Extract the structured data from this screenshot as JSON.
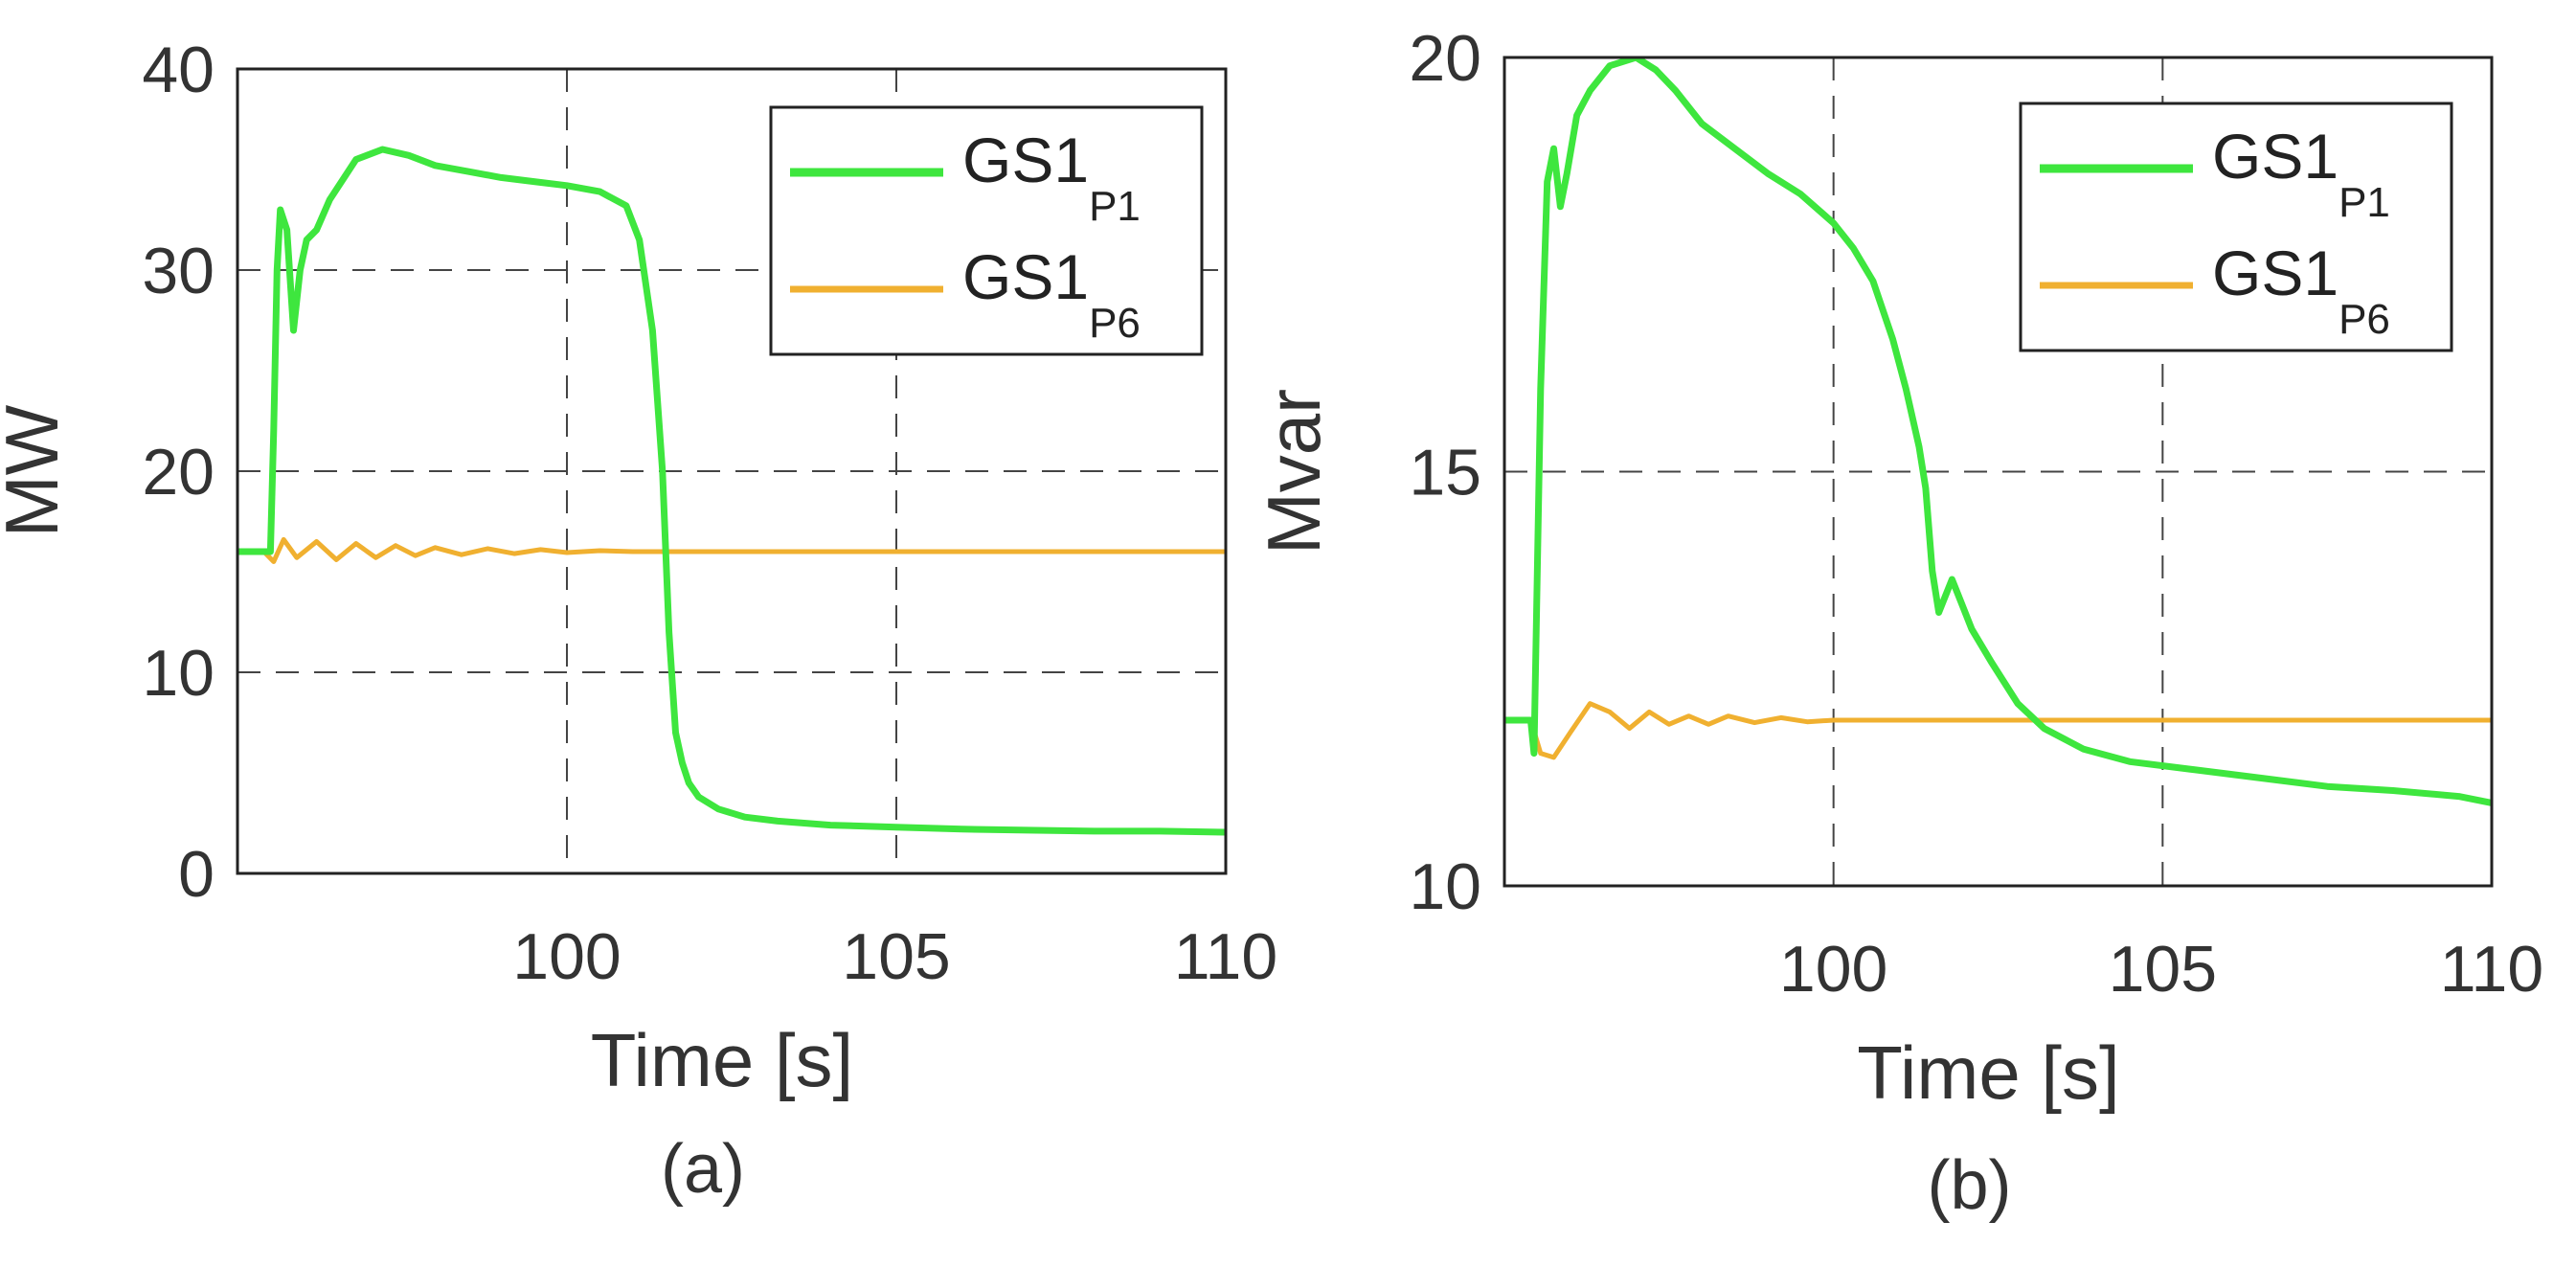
{
  "chart_data": [
    {
      "type": "line",
      "caption": "(a)",
      "xlabel": "Time [s]",
      "ylabel": "MW",
      "xlim": [
        95,
        110
      ],
      "ylim": [
        0,
        40
      ],
      "xticks": [
        100,
        105,
        110
      ],
      "xtick_labels": [
        "100",
        "105",
        "110"
      ],
      "yticks": [
        0,
        10,
        20,
        30,
        40
      ],
      "ytick_labels": [
        "0",
        "10",
        "20",
        "30",
        "40"
      ],
      "grid": true,
      "legend_position": "top-right",
      "series": [
        {
          "name": "GS1",
          "subscript": "P1",
          "color": "#3ee63e",
          "x": [
            95,
            95.4,
            95.5,
            95.55,
            95.6,
            95.65,
            95.75,
            95.85,
            95.95,
            96.05,
            96.2,
            96.4,
            96.8,
            97.2,
            97.6,
            98.0,
            98.5,
            99.0,
            99.5,
            100.0,
            100.5,
            100.9,
            101.1,
            101.3,
            101.45,
            101.55,
            101.65,
            101.75,
            101.85,
            102.0,
            102.3,
            102.7,
            103.2,
            104.0,
            105.0,
            106.0,
            107.0,
            108.0,
            109.0,
            110.0
          ],
          "y": [
            16,
            16,
            16,
            22,
            30,
            33,
            32,
            27,
            30,
            31.5,
            32,
            33.5,
            35.5,
            36,
            35.7,
            35.2,
            34.9,
            34.6,
            34.4,
            34.2,
            33.9,
            33.2,
            31.5,
            27,
            20,
            12,
            7,
            5.5,
            4.5,
            3.8,
            3.2,
            2.8,
            2.6,
            2.4,
            2.3,
            2.2,
            2.15,
            2.1,
            2.1,
            2.05
          ]
        },
        {
          "name": "GS1",
          "subscript": "P6",
          "color": "#f0b030",
          "x": [
            95,
            95.4,
            95.55,
            95.7,
            95.9,
            96.2,
            96.5,
            96.8,
            97.1,
            97.4,
            97.7,
            98.0,
            98.4,
            98.8,
            99.2,
            99.6,
            100.0,
            100.5,
            101.0,
            102.0,
            104.0,
            106.0,
            108.0,
            110.0
          ],
          "y": [
            16,
            16,
            15.5,
            16.6,
            15.7,
            16.5,
            15.6,
            16.4,
            15.7,
            16.3,
            15.8,
            16.2,
            15.85,
            16.15,
            15.9,
            16.1,
            15.95,
            16.05,
            16,
            16,
            16,
            16,
            16,
            16
          ]
        }
      ]
    },
    {
      "type": "line",
      "caption": "(b)",
      "xlabel": "Time [s]",
      "ylabel": "Mvar",
      "xlim": [
        95,
        110
      ],
      "ylim": [
        10,
        20
      ],
      "xticks": [
        100,
        105,
        110
      ],
      "xtick_labels": [
        "100",
        "105",
        "110"
      ],
      "yticks": [
        10,
        15,
        20
      ],
      "ytick_labels": [
        "10",
        "15",
        "20"
      ],
      "grid": true,
      "legend_position": "top-right",
      "series": [
        {
          "name": "GS1",
          "subscript": "P1",
          "color": "#3ee63e",
          "x": [
            95,
            95.4,
            95.45,
            95.55,
            95.65,
            95.75,
            95.85,
            95.95,
            96.1,
            96.3,
            96.6,
            97.0,
            97.3,
            97.6,
            98.0,
            98.5,
            99.0,
            99.5,
            100.0,
            100.3,
            100.6,
            100.9,
            101.1,
            101.3,
            101.4,
            101.5,
            101.6,
            101.8,
            101.9,
            102.1,
            102.4,
            102.8,
            103.2,
            103.8,
            104.5,
            105.5,
            106.5,
            107.5,
            108.5,
            109.5,
            110.0
          ],
          "y": [
            12,
            12,
            11.6,
            16,
            18.5,
            18.9,
            18.2,
            18.6,
            19.3,
            19.6,
            19.9,
            20.0,
            19.85,
            19.6,
            19.2,
            18.9,
            18.6,
            18.35,
            18.0,
            17.7,
            17.3,
            16.6,
            16.0,
            15.3,
            14.8,
            13.8,
            13.3,
            13.7,
            13.5,
            13.1,
            12.7,
            12.2,
            11.9,
            11.65,
            11.5,
            11.4,
            11.3,
            11.2,
            11.15,
            11.08,
            11.0
          ]
        },
        {
          "name": "GS1",
          "subscript": "P6",
          "color": "#f0b030",
          "x": [
            95,
            95.4,
            95.55,
            95.75,
            96.0,
            96.3,
            96.6,
            96.9,
            97.2,
            97.5,
            97.8,
            98.1,
            98.4,
            98.8,
            99.2,
            99.6,
            100.0,
            101.0,
            102.0,
            104.0,
            106.0,
            108.0,
            110.0
          ],
          "y": [
            12,
            12,
            11.6,
            11.55,
            11.85,
            12.2,
            12.1,
            11.9,
            12.1,
            11.95,
            12.05,
            11.95,
            12.05,
            11.97,
            12.03,
            11.98,
            12.0,
            12.0,
            12.0,
            12.0,
            12.0,
            12.0,
            12.0
          ]
        }
      ]
    }
  ]
}
